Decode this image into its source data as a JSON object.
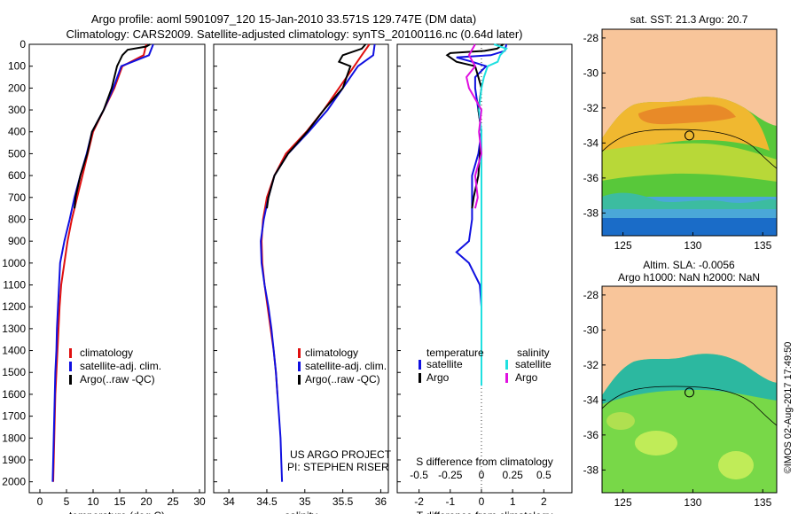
{
  "header": {
    "line1": "Argo profile: aoml 5901097_120 15-Jan-2010 33.571S 129.747E (DM data)",
    "line2": "Climatology: CARS2009. Satellite-adjusted climatology: synTS_20100116.nc (0.64d later)"
  },
  "colors": {
    "climatology": "#e01010",
    "satellite": "#1010e0",
    "argo": "#000000",
    "sal_satellite": "#20e0e0",
    "sal_argo": "#e010e0",
    "land": "#f8c59a",
    "contour": "#000000"
  },
  "credits": {
    "project": "US ARGO PROJECT",
    "pi": "PI: STEPHEN RISER"
  },
  "timestamp": "©IMOS 02-Aug-2017 17:49:50",
  "map_titles": {
    "sst": "sat. SST: 21.3 Argo: 20.7",
    "sla1": "Altim. SLA: -0.0056",
    "sla2": "Argo h1000: NaN h2000: NaN"
  },
  "legend_profiles": [
    "climatology",
    "satellite-adj. clim.",
    "Argo(..raw -QC)"
  ],
  "legend_diff": {
    "temperature_header": "temperature",
    "salinity_header": "salinity",
    "satellite": "satellite",
    "argo": "Argo"
  },
  "chart_data": [
    {
      "type": "line",
      "xlabel": "temperature (deg C)",
      "ylabel": "",
      "xlim": [
        -2,
        31
      ],
      "ylim": [
        2050,
        0
      ],
      "xticks": [
        0,
        5,
        10,
        15,
        20,
        25,
        30
      ],
      "yticks": [
        0,
        100,
        200,
        300,
        400,
        500,
        600,
        700,
        800,
        900,
        1000,
        1100,
        1200,
        1300,
        1400,
        1500,
        1600,
        1700,
        1800,
        1900,
        2000
      ],
      "series": [
        {
          "name": "climatology",
          "y": [
            0,
            50,
            100,
            200,
            300,
            400,
            500,
            600,
            700,
            800,
            900,
            1000,
            1100,
            1200,
            1300,
            1400,
            1500,
            1600,
            1700,
            1800,
            1900,
            2000
          ],
          "x": [
            20.0,
            19.5,
            15.5,
            14.0,
            12.0,
            10.0,
            9.0,
            8.0,
            7.0,
            6.0,
            5.2,
            4.6,
            4.0,
            3.7,
            3.5,
            3.3,
            3.1,
            2.9,
            2.8,
            2.7,
            2.6,
            2.5
          ]
        },
        {
          "name": "satellite-adj. clim.",
          "y": [
            0,
            50,
            100,
            200,
            300,
            400,
            500,
            600,
            700,
            800,
            900,
            1000,
            1100,
            1200,
            1300,
            1400,
            1500,
            1600,
            1700,
            1800,
            1900,
            2000
          ],
          "x": [
            21.3,
            20.5,
            15.3,
            13.8,
            12.0,
            9.8,
            8.8,
            7.6,
            6.5,
            5.6,
            4.6,
            3.8,
            3.6,
            3.4,
            3.2,
            3.1,
            2.9,
            2.8,
            2.7,
            2.6,
            2.5,
            2.4
          ]
        },
        {
          "name": "Argo(..raw -QC)",
          "y": [
            0,
            10,
            25,
            50,
            75,
            100,
            150,
            200,
            300,
            400,
            500,
            600,
            700,
            750
          ],
          "x": [
            20.7,
            20.0,
            16.5,
            15.5,
            15.0,
            14.5,
            14.0,
            13.5,
            12.0,
            9.8,
            8.9,
            7.6,
            6.7,
            6.5
          ]
        }
      ]
    },
    {
      "type": "line",
      "xlabel": "salinity",
      "ylabel": "",
      "xlim": [
        33.8,
        36.1
      ],
      "ylim": [
        2050,
        0
      ],
      "xticks": [
        34,
        34.5,
        35,
        35.5,
        36
      ],
      "series": [
        {
          "name": "climatology",
          "y": [
            0,
            50,
            100,
            200,
            300,
            400,
            500,
            600,
            700,
            800,
            900,
            1000,
            1100,
            1200,
            1300,
            1400,
            1500,
            1600
          ],
          "x": [
            35.85,
            35.75,
            35.65,
            35.45,
            35.25,
            35.02,
            34.75,
            34.6,
            34.5,
            34.45,
            34.43,
            34.44,
            34.47,
            34.51,
            34.55,
            34.59,
            34.62,
            34.64
          ]
        },
        {
          "name": "satellite-adj. clim.",
          "y": [
            0,
            50,
            100,
            200,
            300,
            400,
            500,
            600,
            700,
            800,
            900,
            1000,
            1100,
            1200,
            1300,
            1400,
            1500,
            1600,
            1700,
            1800,
            1900,
            2000
          ],
          "x": [
            35.92,
            35.9,
            35.7,
            35.5,
            35.3,
            35.05,
            34.78,
            34.6,
            34.52,
            34.46,
            34.42,
            34.43,
            34.47,
            34.52,
            34.56,
            34.59,
            34.62,
            34.64,
            34.66,
            34.68,
            34.69,
            34.7
          ]
        },
        {
          "name": "Argo(..raw -QC)",
          "y": [
            0,
            20,
            50,
            80,
            100,
            150,
            200,
            300,
            400,
            500,
            600,
            700,
            750
          ],
          "x": [
            35.8,
            35.75,
            35.5,
            35.45,
            35.6,
            35.55,
            35.5,
            35.25,
            35.03,
            34.78,
            34.6,
            34.52,
            34.5
          ]
        }
      ]
    },
    {
      "type": "line",
      "xlabel": "T difference from climatology",
      "x2label": "S difference from climatology",
      "xlim": [
        -2.7,
        2.9
      ],
      "x2lim": [
        -0.675,
        0.725
      ],
      "ylim": [
        2050,
        0
      ],
      "xticks": [
        -2,
        -1,
        0,
        1,
        2
      ],
      "x2ticks": [
        -0.5,
        -0.25,
        0,
        0.25,
        0.5
      ],
      "series": [
        {
          "name": "temperature satellite",
          "axis": "T",
          "y": [
            0,
            30,
            50,
            60,
            80,
            100,
            150,
            200,
            300,
            400,
            500,
            600,
            700,
            800,
            900,
            950,
            1000,
            1100,
            1200,
            1300,
            1400,
            1500,
            1560
          ],
          "x": [
            0.8,
            0.75,
            0.3,
            -0.8,
            -0.3,
            0.15,
            -0.2,
            -0.2,
            -0.1,
            0.0,
            -0.1,
            -0.3,
            -0.3,
            -0.3,
            -0.4,
            -0.8,
            -0.4,
            -0.05,
            0.0,
            0.0,
            0.0,
            0.0,
            0.0
          ]
        },
        {
          "name": "temperature Argo",
          "axis": "T",
          "y": [
            0,
            20,
            30,
            40,
            50,
            60,
            80,
            100,
            150,
            200,
            300,
            400,
            500,
            600,
            700,
            750
          ],
          "x": [
            0.7,
            0.5,
            0.1,
            -1.0,
            -1.1,
            -1.0,
            -0.8,
            -0.2,
            -0.1,
            0.0,
            -0.1,
            0.0,
            -0.05,
            -0.1,
            -0.25,
            -0.3
          ]
        },
        {
          "name": "salinity satellite",
          "axis": "S",
          "y": [
            0,
            20,
            50,
            80,
            100,
            150,
            200,
            300,
            400,
            500,
            600,
            700,
            800,
            900,
            1000,
            1100,
            1200,
            1300,
            1400,
            1500,
            1560
          ],
          "x": [
            0.1,
            0.2,
            0.15,
            0.13,
            0.05,
            0.02,
            0.0,
            -0.02,
            0.0,
            0.0,
            0.0,
            0.0,
            0.0,
            0.0,
            0.0,
            0.0,
            0.0,
            0.0,
            0.0,
            0.0,
            0.0
          ]
        },
        {
          "name": "salinity Argo",
          "axis": "S",
          "y": [
            0,
            50,
            100,
            150,
            200,
            300,
            400,
            500,
            600,
            700,
            750
          ],
          "x": [
            -0.05,
            -0.1,
            -0.05,
            -0.12,
            -0.1,
            0.0,
            -0.02,
            0.0,
            -0.05,
            -0.03,
            -0.05
          ]
        }
      ]
    }
  ],
  "maps": [
    {
      "name": "sst",
      "xlim": [
        123.5,
        136
      ],
      "ylim": [
        -39.3,
        -27.5
      ],
      "xticks": [
        125,
        130,
        135
      ],
      "yticks": [
        -28,
        -30,
        -32,
        -34,
        -36,
        -38
      ],
      "marker": {
        "lon": 129.747,
        "lat": -33.571
      }
    },
    {
      "name": "sla",
      "xlim": [
        123.5,
        136
      ],
      "ylim": [
        -39.3,
        -27.5
      ],
      "xticks": [
        125,
        130,
        135
      ],
      "yticks": [
        -28,
        -30,
        -32,
        -34,
        -36,
        -38
      ],
      "marker": {
        "lon": 129.747,
        "lat": -33.571
      }
    }
  ]
}
